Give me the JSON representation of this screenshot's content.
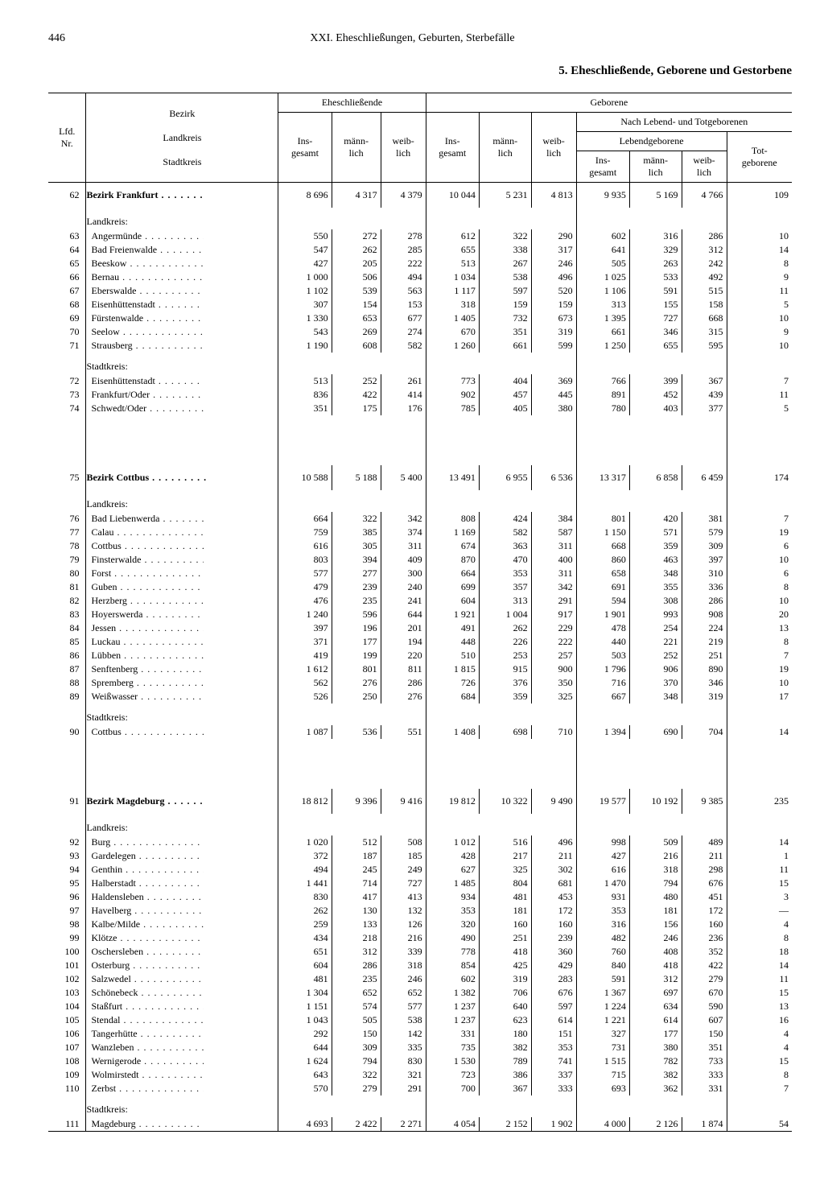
{
  "page_number": "446",
  "chapter_title": "XXI. Eheschließungen, Geburten, Sterbefälle",
  "section_title": "5. Eheschließende, Geborene und Gestorbene",
  "header": {
    "lfd": "Lfd.\nNr.",
    "bezirk": "Bezirk",
    "landkreis": "Landkreis",
    "stadtkreis": "Stadtkreis",
    "ehe": "Eheschließende",
    "geb": "Geborene",
    "nach": "Nach Lebend- und Totgeborenen",
    "lebend": "Lebendgeborene",
    "ins": "Ins-\ngesamt",
    "mann": "männ-\nlich",
    "weib": "weib-\nlich",
    "tot": "Tot-\ngeborene"
  },
  "labels": {
    "landkreis_h": "Landkreis:",
    "stadtkreis_h": "Stadtkreis:"
  },
  "sections": [
    {
      "nr": "62",
      "name": "Bezirk Frankfurt",
      "v": [
        "8 696",
        "4 317",
        "4 379",
        "10 044",
        "5 231",
        "4 813",
        "9 935",
        "5 169",
        "4 766",
        "109"
      ],
      "landkreis": [
        {
          "nr": "63",
          "name": "Angermünde",
          "v": [
            "550",
            "272",
            "278",
            "612",
            "322",
            "290",
            "602",
            "316",
            "286",
            "10"
          ]
        },
        {
          "nr": "64",
          "name": "Bad Freienwalde",
          "v": [
            "547",
            "262",
            "285",
            "655",
            "338",
            "317",
            "641",
            "329",
            "312",
            "14"
          ]
        },
        {
          "nr": "65",
          "name": "Beeskow",
          "v": [
            "427",
            "205",
            "222",
            "513",
            "267",
            "246",
            "505",
            "263",
            "242",
            "8"
          ]
        },
        {
          "nr": "66",
          "name": "Bernau",
          "v": [
            "1 000",
            "506",
            "494",
            "1 034",
            "538",
            "496",
            "1 025",
            "533",
            "492",
            "9"
          ]
        },
        {
          "nr": "67",
          "name": "Eberswalde",
          "v": [
            "1 102",
            "539",
            "563",
            "1 117",
            "597",
            "520",
            "1 106",
            "591",
            "515",
            "11"
          ]
        },
        {
          "nr": "68",
          "name": "Eisenhüttenstadt",
          "v": [
            "307",
            "154",
            "153",
            "318",
            "159",
            "159",
            "313",
            "155",
            "158",
            "5"
          ]
        },
        {
          "nr": "69",
          "name": "Fürstenwalde",
          "v": [
            "1 330",
            "653",
            "677",
            "1 405",
            "732",
            "673",
            "1 395",
            "727",
            "668",
            "10"
          ]
        },
        {
          "nr": "70",
          "name": "Seelow",
          "v": [
            "543",
            "269",
            "274",
            "670",
            "351",
            "319",
            "661",
            "346",
            "315",
            "9"
          ]
        },
        {
          "nr": "71",
          "name": "Strausberg",
          "v": [
            "1 190",
            "608",
            "582",
            "1 260",
            "661",
            "599",
            "1 250",
            "655",
            "595",
            "10"
          ]
        }
      ],
      "stadtkreis": [
        {
          "nr": "72",
          "name": "Eisenhüttenstadt",
          "v": [
            "513",
            "252",
            "261",
            "773",
            "404",
            "369",
            "766",
            "399",
            "367",
            "7"
          ]
        },
        {
          "nr": "73",
          "name": "Frankfurt/Oder",
          "v": [
            "836",
            "422",
            "414",
            "902",
            "457",
            "445",
            "891",
            "452",
            "439",
            "11"
          ]
        },
        {
          "nr": "74",
          "name": "Schwedt/Oder",
          "v": [
            "351",
            "175",
            "176",
            "785",
            "405",
            "380",
            "780",
            "403",
            "377",
            "5"
          ]
        }
      ]
    },
    {
      "nr": "75",
      "name": "Bezirk Cottbus",
      "v": [
        "10 588",
        "5 188",
        "5 400",
        "13 491",
        "6 955",
        "6 536",
        "13 317",
        "6 858",
        "6 459",
        "174"
      ],
      "landkreis": [
        {
          "nr": "76",
          "name": "Bad Liebenwerda",
          "v": [
            "664",
            "322",
            "342",
            "808",
            "424",
            "384",
            "801",
            "420",
            "381",
            "7"
          ]
        },
        {
          "nr": "77",
          "name": "Calau",
          "v": [
            "759",
            "385",
            "374",
            "1 169",
            "582",
            "587",
            "1 150",
            "571",
            "579",
            "19"
          ]
        },
        {
          "nr": "78",
          "name": "Cottbus",
          "v": [
            "616",
            "305",
            "311",
            "674",
            "363",
            "311",
            "668",
            "359",
            "309",
            "6"
          ]
        },
        {
          "nr": "79",
          "name": "Finsterwalde",
          "v": [
            "803",
            "394",
            "409",
            "870",
            "470",
            "400",
            "860",
            "463",
            "397",
            "10"
          ]
        },
        {
          "nr": "80",
          "name": "Forst",
          "v": [
            "577",
            "277",
            "300",
            "664",
            "353",
            "311",
            "658",
            "348",
            "310",
            "6"
          ]
        },
        {
          "nr": "81",
          "name": "Guben",
          "v": [
            "479",
            "239",
            "240",
            "699",
            "357",
            "342",
            "691",
            "355",
            "336",
            "8"
          ]
        },
        {
          "nr": "82",
          "name": "Herzberg",
          "v": [
            "476",
            "235",
            "241",
            "604",
            "313",
            "291",
            "594",
            "308",
            "286",
            "10"
          ]
        },
        {
          "nr": "83",
          "name": "Hoyerswerda",
          "v": [
            "1 240",
            "596",
            "644",
            "1 921",
            "1 004",
            "917",
            "1 901",
            "993",
            "908",
            "20"
          ]
        },
        {
          "nr": "84",
          "name": "Jessen",
          "v": [
            "397",
            "196",
            "201",
            "491",
            "262",
            "229",
            "478",
            "254",
            "224",
            "13"
          ]
        },
        {
          "nr": "85",
          "name": "Luckau",
          "v": [
            "371",
            "177",
            "194",
            "448",
            "226",
            "222",
            "440",
            "221",
            "219",
            "8"
          ]
        },
        {
          "nr": "86",
          "name": "Lübben",
          "v": [
            "419",
            "199",
            "220",
            "510",
            "253",
            "257",
            "503",
            "252",
            "251",
            "7"
          ]
        },
        {
          "nr": "87",
          "name": "Senftenberg",
          "v": [
            "1 612",
            "801",
            "811",
            "1 815",
            "915",
            "900",
            "1 796",
            "906",
            "890",
            "19"
          ]
        },
        {
          "nr": "88",
          "name": "Spremberg",
          "v": [
            "562",
            "276",
            "286",
            "726",
            "376",
            "350",
            "716",
            "370",
            "346",
            "10"
          ]
        },
        {
          "nr": "89",
          "name": "Weißwasser",
          "v": [
            "526",
            "250",
            "276",
            "684",
            "359",
            "325",
            "667",
            "348",
            "319",
            "17"
          ]
        }
      ],
      "stadtkreis": [
        {
          "nr": "90",
          "name": "Cottbus",
          "v": [
            "1 087",
            "536",
            "551",
            "1 408",
            "698",
            "710",
            "1 394",
            "690",
            "704",
            "14"
          ]
        }
      ]
    },
    {
      "nr": "91",
      "name": "Bezirk Magdeburg",
      "v": [
        "18 812",
        "9 396",
        "9 416",
        "19 812",
        "10 322",
        "9 490",
        "19 577",
        "10 192",
        "9 385",
        "235"
      ],
      "landkreis": [
        {
          "nr": "92",
          "name": "Burg",
          "v": [
            "1 020",
            "512",
            "508",
            "1 012",
            "516",
            "496",
            "998",
            "509",
            "489",
            "14"
          ]
        },
        {
          "nr": "93",
          "name": "Gardelegen",
          "v": [
            "372",
            "187",
            "185",
            "428",
            "217",
            "211",
            "427",
            "216",
            "211",
            "1"
          ]
        },
        {
          "nr": "94",
          "name": "Genthin",
          "v": [
            "494",
            "245",
            "249",
            "627",
            "325",
            "302",
            "616",
            "318",
            "298",
            "11"
          ]
        },
        {
          "nr": "95",
          "name": "Halberstadt",
          "v": [
            "1 441",
            "714",
            "727",
            "1 485",
            "804",
            "681",
            "1 470",
            "794",
            "676",
            "15"
          ]
        },
        {
          "nr": "96",
          "name": "Haldensleben",
          "v": [
            "830",
            "417",
            "413",
            "934",
            "481",
            "453",
            "931",
            "480",
            "451",
            "3"
          ]
        },
        {
          "nr": "97",
          "name": "Havelberg",
          "v": [
            "262",
            "130",
            "132",
            "353",
            "181",
            "172",
            "353",
            "181",
            "172",
            "—"
          ]
        },
        {
          "nr": "98",
          "name": "Kalbe/Milde",
          "v": [
            "259",
            "133",
            "126",
            "320",
            "160",
            "160",
            "316",
            "156",
            "160",
            "4"
          ]
        },
        {
          "nr": "99",
          "name": "Klötze",
          "v": [
            "434",
            "218",
            "216",
            "490",
            "251",
            "239",
            "482",
            "246",
            "236",
            "8"
          ]
        },
        {
          "nr": "100",
          "name": "Oschersleben",
          "v": [
            "651",
            "312",
            "339",
            "778",
            "418",
            "360",
            "760",
            "408",
            "352",
            "18"
          ]
        },
        {
          "nr": "101",
          "name": "Osterburg",
          "v": [
            "604",
            "286",
            "318",
            "854",
            "425",
            "429",
            "840",
            "418",
            "422",
            "14"
          ]
        },
        {
          "nr": "102",
          "name": "Salzwedel",
          "v": [
            "481",
            "235",
            "246",
            "602",
            "319",
            "283",
            "591",
            "312",
            "279",
            "11"
          ]
        },
        {
          "nr": "103",
          "name": "Schönebeck",
          "v": [
            "1 304",
            "652",
            "652",
            "1 382",
            "706",
            "676",
            "1 367",
            "697",
            "670",
            "15"
          ]
        },
        {
          "nr": "104",
          "name": "Staßfurt",
          "v": [
            "1 151",
            "574",
            "577",
            "1 237",
            "640",
            "597",
            "1 224",
            "634",
            "590",
            "13"
          ]
        },
        {
          "nr": "105",
          "name": "Stendal",
          "v": [
            "1 043",
            "505",
            "538",
            "1 237",
            "623",
            "614",
            "1 221",
            "614",
            "607",
            "16"
          ]
        },
        {
          "nr": "106",
          "name": "Tangerhütte",
          "v": [
            "292",
            "150",
            "142",
            "331",
            "180",
            "151",
            "327",
            "177",
            "150",
            "4"
          ]
        },
        {
          "nr": "107",
          "name": "Wanzleben",
          "v": [
            "644",
            "309",
            "335",
            "735",
            "382",
            "353",
            "731",
            "380",
            "351",
            "4"
          ]
        },
        {
          "nr": "108",
          "name": "Wernigerode",
          "v": [
            "1 624",
            "794",
            "830",
            "1 530",
            "789",
            "741",
            "1 515",
            "782",
            "733",
            "15"
          ]
        },
        {
          "nr": "109",
          "name": "Wolmirstedt",
          "v": [
            "643",
            "322",
            "321",
            "723",
            "386",
            "337",
            "715",
            "382",
            "333",
            "8"
          ]
        },
        {
          "nr": "110",
          "name": "Zerbst",
          "v": [
            "570",
            "279",
            "291",
            "700",
            "367",
            "333",
            "693",
            "362",
            "331",
            "7"
          ]
        }
      ],
      "stadtkreis": [
        {
          "nr": "111",
          "name": "Magdeburg",
          "v": [
            "4 693",
            "2 422",
            "2 271",
            "4 054",
            "2 152",
            "1 902",
            "4 000",
            "2 126",
            "1 874",
            "54"
          ]
        }
      ]
    }
  ]
}
